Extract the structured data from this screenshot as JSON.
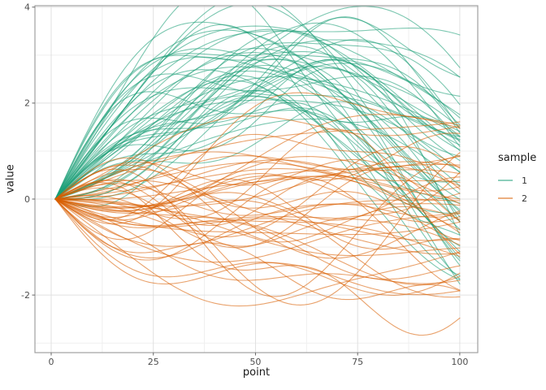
{
  "window": {
    "background": "#ffffff"
  },
  "chart_data": {
    "type": "line",
    "title": "",
    "xlabel": "point",
    "ylabel": "value",
    "x_ticks": [
      0,
      25,
      50,
      75,
      100
    ],
    "x_tick_labels": [
      "0",
      "25",
      "50",
      "75",
      "100"
    ],
    "y_ticks": [
      -2,
      0,
      2,
      4
    ],
    "y_tick_labels": [
      "-2",
      "0",
      "2",
      "4"
    ],
    "x_minor_ticks": [
      12.5,
      37.5,
      62.5,
      87.5
    ],
    "y_minor_ticks": [
      -3,
      -1,
      1,
      3
    ],
    "xlim": [
      -3.98,
      104.4
    ],
    "ylim": [
      -3.2,
      4.03
    ],
    "grid": "major+minor",
    "legend": {
      "title": "sample",
      "position": "right",
      "entries": [
        {
          "label": "1",
          "color": "#1B9E77"
        },
        {
          "label": "2",
          "color": "#D95F02"
        }
      ]
    },
    "series_generator": {
      "comment": "100 smooth random curves, 50 per sample, all starting at (1,0); y(t)=a1*sin(f1*t)+a2*sin(f2*t)+a3*sin(f3*t)+drift*t with t=(x-1)/99; sample 1 arcs up to ~2-3.7 mid-domain then fans out to [-2.1,2.6]; sample 2 undulates near 0 fanning to [-3,2.1]",
      "seed": 20,
      "n_per_sample": 50,
      "x_range": [
        1,
        100
      ],
      "alpha": 0.58,
      "stroke_width": 1.1,
      "samples": [
        {
          "label": "1",
          "color": "#1B9E77",
          "a1": [
            1.7,
            3.7
          ],
          "f1": [
            2.3,
            3.8
          ],
          "a2": [
            -0.85,
            0.85
          ],
          "f2": [
            4.5,
            7.0
          ],
          "a3": [
            -0.55,
            0.55
          ],
          "f3": [
            8.0,
            12.0
          ],
          "drift": [
            -0.8,
            0.8
          ]
        },
        {
          "label": "2",
          "color": "#D95F02",
          "a1": [
            -1.3,
            1.3
          ],
          "f1": [
            1.5,
            3.5
          ],
          "a2": [
            -0.8,
            0.8
          ],
          "f2": [
            4.0,
            7.5
          ],
          "a3": [
            -0.5,
            0.5
          ],
          "f3": [
            7.5,
            12.0
          ],
          "drift": [
            -1.54,
            1.26
          ]
        }
      ]
    },
    "style": {
      "panel_background": "#ffffff",
      "panel_border": "#a0a0a0",
      "grid_major": "#e0e0e0",
      "grid_minor": "#efefef",
      "tick_color": "#666666",
      "tick_label_color": "#4d4d4d",
      "axis_title_color": "#1a1a1a"
    }
  }
}
